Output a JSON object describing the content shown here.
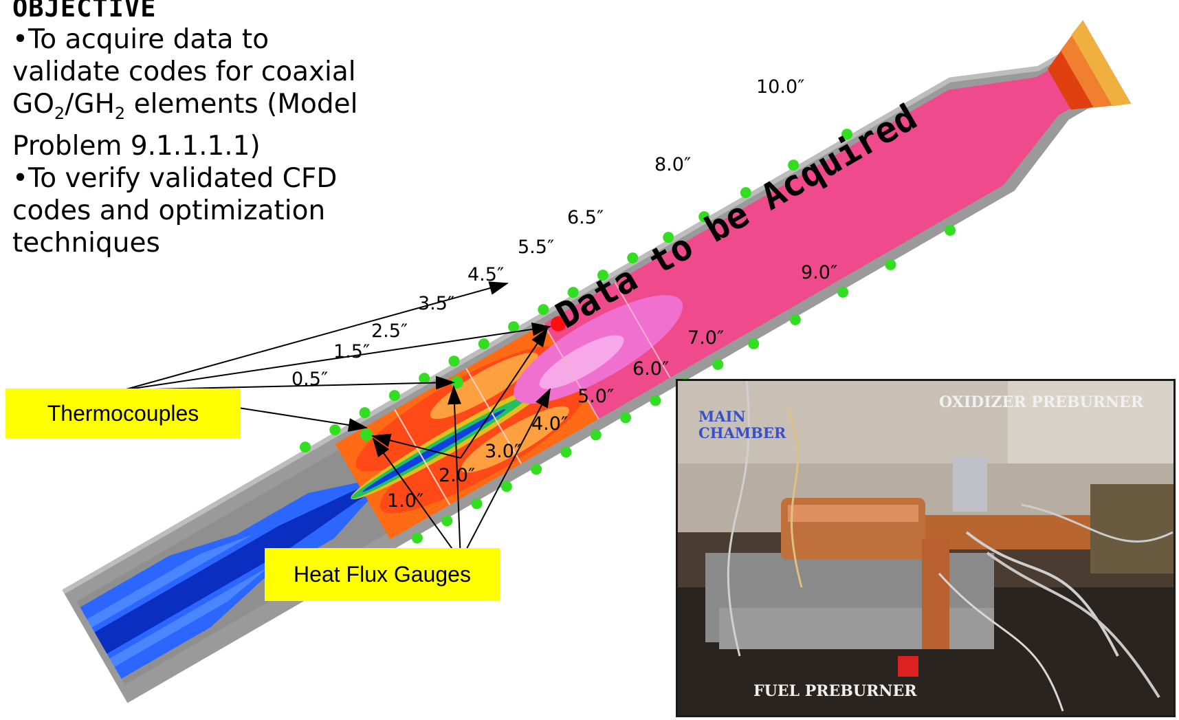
{
  "objective": {
    "heading": "OBJECTIVE",
    "bullet1_lines": [
      "•To acquire data to",
      "validate codes for coaxial"
    ],
    "bullet1_formula": {
      "go": "GO",
      "go_sub": "2",
      "sep": "/GH",
      "gh_sub": "2",
      "rest": " elements (Model"
    },
    "bullet1_last": "Problem 9.1.1.1.1)",
    "bullet2_lines": [
      "•To verify validated CFD",
      "codes and optimization",
      "techniques"
    ]
  },
  "diagram": {
    "banner": "Data to be Acquired",
    "upper_labels": [
      "0.5″",
      "1.5″",
      "2.5″",
      "3.5″",
      "4.5″",
      "5.5″",
      "6.5″",
      "8.0″",
      "10.0″"
    ],
    "lower_labels": [
      "1.0″",
      "2.0″",
      "3.0″",
      "4.0″",
      "5.0″",
      "6.0″",
      "7.0″",
      "9.0″"
    ],
    "callouts": {
      "thermocouples": "Thermocouples",
      "heat_flux": "Heat Flux Gauges"
    },
    "colors": {
      "chamber_pink": "#ee4a8c",
      "callout_yellow": "#ffff00",
      "injector_blue": "#1a55e0",
      "gauge_green": "#33dd22"
    }
  },
  "photo": {
    "labels": {
      "main_chamber": "MAIN\nCHAMBER",
      "oxidizer": "OXIDIZER PREBURNER",
      "fuel": "FUEL PREBURNER"
    }
  }
}
